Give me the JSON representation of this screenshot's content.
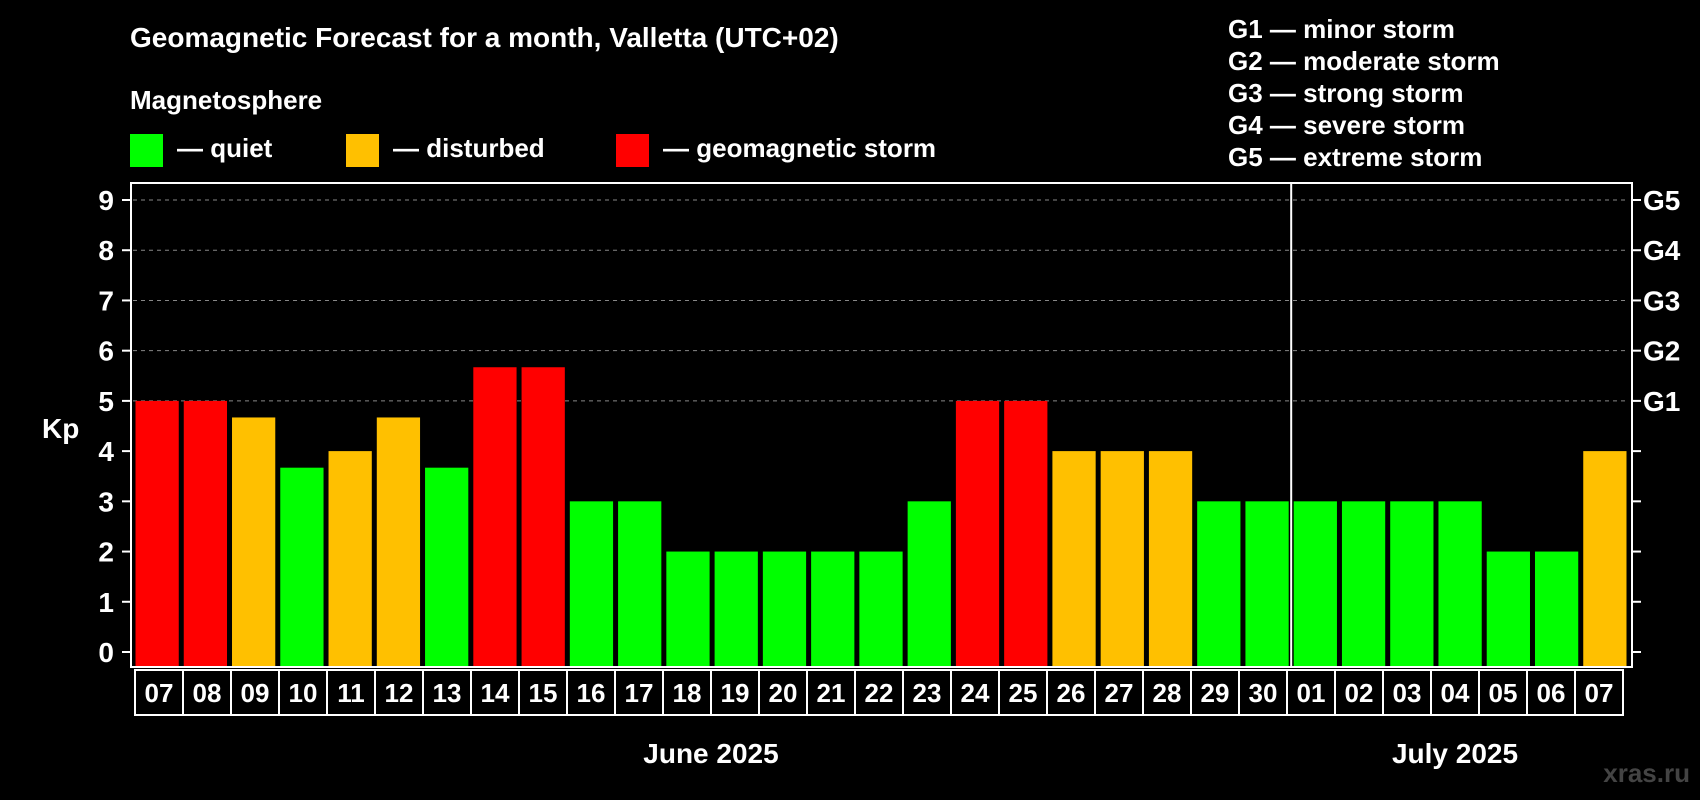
{
  "chart_data": {
    "type": "bar",
    "title": "Geomagnetic Forecast for a month, Valletta (UTC+02)",
    "legend_title": "Magnetosphere",
    "legend": [
      {
        "label": "— quiet",
        "color": "#00ff00"
      },
      {
        "label": "— disturbed",
        "color": "#ffc000"
      },
      {
        "label": "— geomagnetic storm",
        "color": "#ff0000"
      }
    ],
    "storm_scale": [
      "G1 — minor storm",
      "G2 — moderate storm",
      "G3 — strong storm",
      "G4 — severe storm",
      "G5 — extreme storm"
    ],
    "ylabel": "Kp",
    "ylim": [
      0,
      9
    ],
    "yticks": [
      "0",
      "1",
      "2",
      "3",
      "4",
      "5",
      "6",
      "7",
      "8",
      "9"
    ],
    "right_ticks": [
      {
        "value": 5,
        "label": "G1"
      },
      {
        "value": 6,
        "label": "G2"
      },
      {
        "value": 7,
        "label": "G3"
      },
      {
        "value": 8,
        "label": "G4"
      },
      {
        "value": 9,
        "label": "G5"
      }
    ],
    "categories": [
      "07",
      "08",
      "09",
      "10",
      "11",
      "12",
      "13",
      "14",
      "15",
      "16",
      "17",
      "18",
      "19",
      "20",
      "21",
      "22",
      "23",
      "24",
      "25",
      "26",
      "27",
      "28",
      "29",
      "30",
      "01",
      "02",
      "03",
      "04",
      "05",
      "06",
      "07"
    ],
    "values": [
      5,
      5,
      4.67,
      3.67,
      4,
      4.67,
      3.67,
      5.67,
      5.67,
      3,
      3,
      2,
      2,
      2,
      2,
      2,
      3,
      5,
      5,
      4,
      4,
      4,
      3,
      3,
      3,
      3,
      3,
      3,
      2,
      2,
      4
    ],
    "levels": [
      "storm",
      "storm",
      "disturbed",
      "quiet",
      "disturbed",
      "disturbed",
      "quiet",
      "storm",
      "storm",
      "quiet",
      "quiet",
      "quiet",
      "quiet",
      "quiet",
      "quiet",
      "quiet",
      "quiet",
      "storm",
      "storm",
      "disturbed",
      "disturbed",
      "disturbed",
      "quiet",
      "quiet",
      "quiet",
      "quiet",
      "quiet",
      "quiet",
      "quiet",
      "quiet",
      "disturbed"
    ],
    "level_colors": {
      "quiet": "#00ff00",
      "disturbed": "#ffc000",
      "storm": "#ff0000"
    },
    "months": [
      {
        "label": "June 2025",
        "start_index": 0,
        "count": 24
      },
      {
        "label": "July 2025",
        "start_index": 24,
        "count": 7
      }
    ],
    "month_divider_after_index": 23,
    "watermark": "xras.ru"
  }
}
